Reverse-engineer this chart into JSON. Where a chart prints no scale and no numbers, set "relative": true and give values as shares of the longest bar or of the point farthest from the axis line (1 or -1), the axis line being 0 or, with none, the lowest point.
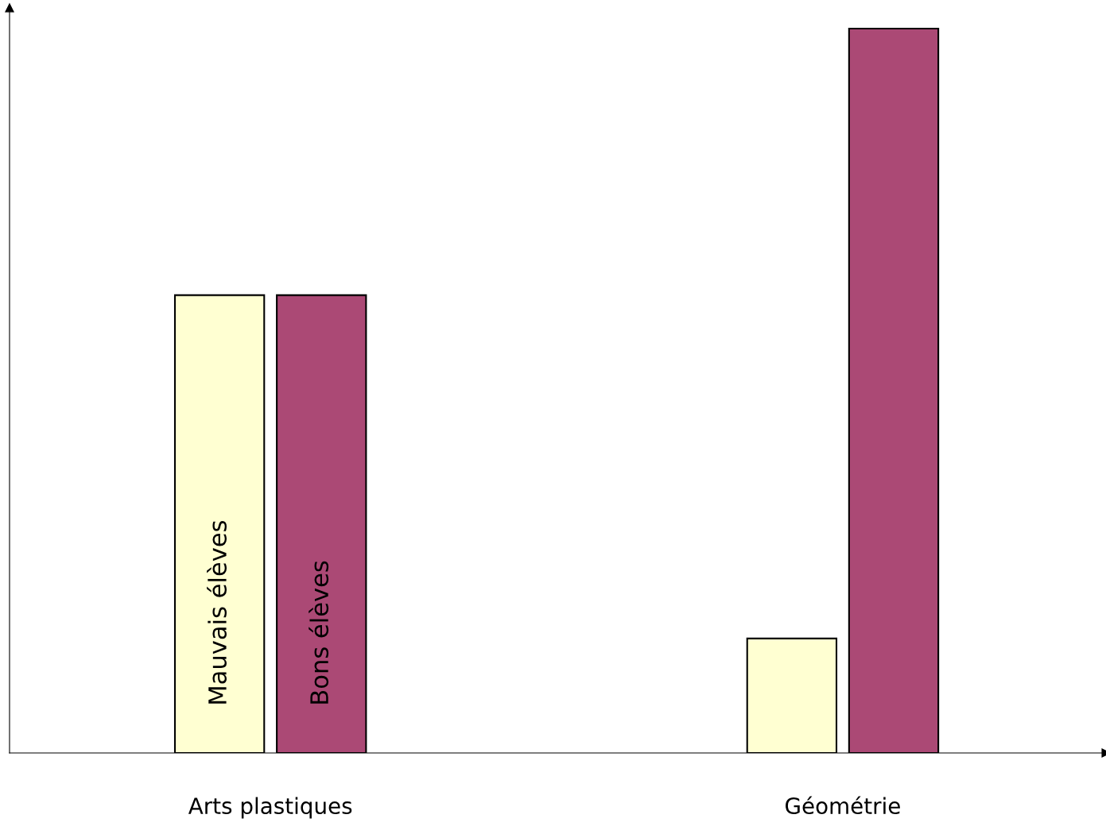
{
  "chart_data": {
    "type": "bar",
    "relative": true,
    "categories": [
      "Arts plastiques",
      "Géométrie"
    ],
    "series": [
      {
        "name": "Mauvais élèves",
        "color": "#ffffd2",
        "values": [
          0.632,
          0.158
        ]
      },
      {
        "name": "Bons élèves",
        "color": "#ab4975",
        "values": [
          0.632,
          1
        ]
      }
    ],
    "grid": false,
    "legend": false
  }
}
